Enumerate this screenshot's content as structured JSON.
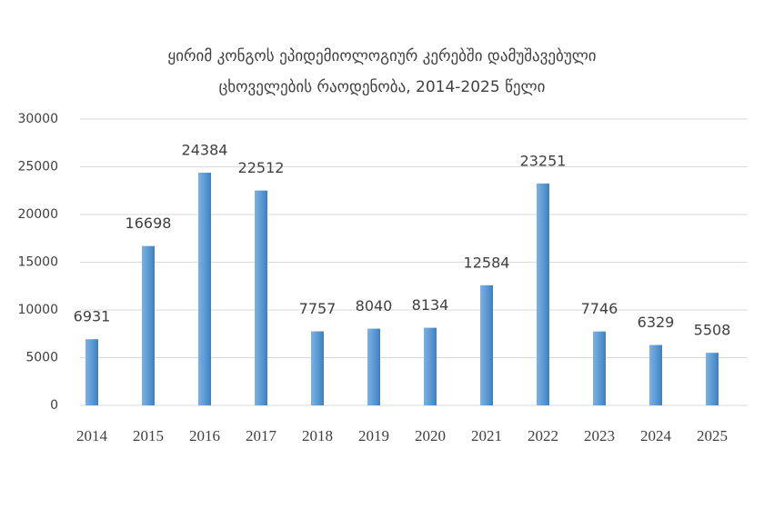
{
  "chart_data": {
    "type": "bar",
    "title": [
      "ყირიმ კონგოს  ეპიდემიოლოგიურ კერებში დამუშავებული",
      "ცხოველების რაოდენობა, 2014-2025 წელი"
    ],
    "categories": [
      "2014",
      "2015",
      "2016",
      "2017",
      "2018",
      "2019",
      "2020",
      "2021",
      "2022",
      "2023",
      "2024",
      "2025"
    ],
    "values": [
      6931,
      16698,
      24384,
      22512,
      7757,
      8040,
      8134,
      12584,
      23251,
      7746,
      6329,
      5508
    ],
    "color": "#5b9bd5",
    "ylim": [
      0,
      30000
    ],
    "yticks": [
      0,
      5000,
      10000,
      15000,
      20000,
      25000,
      30000
    ],
    "grid": true
  }
}
